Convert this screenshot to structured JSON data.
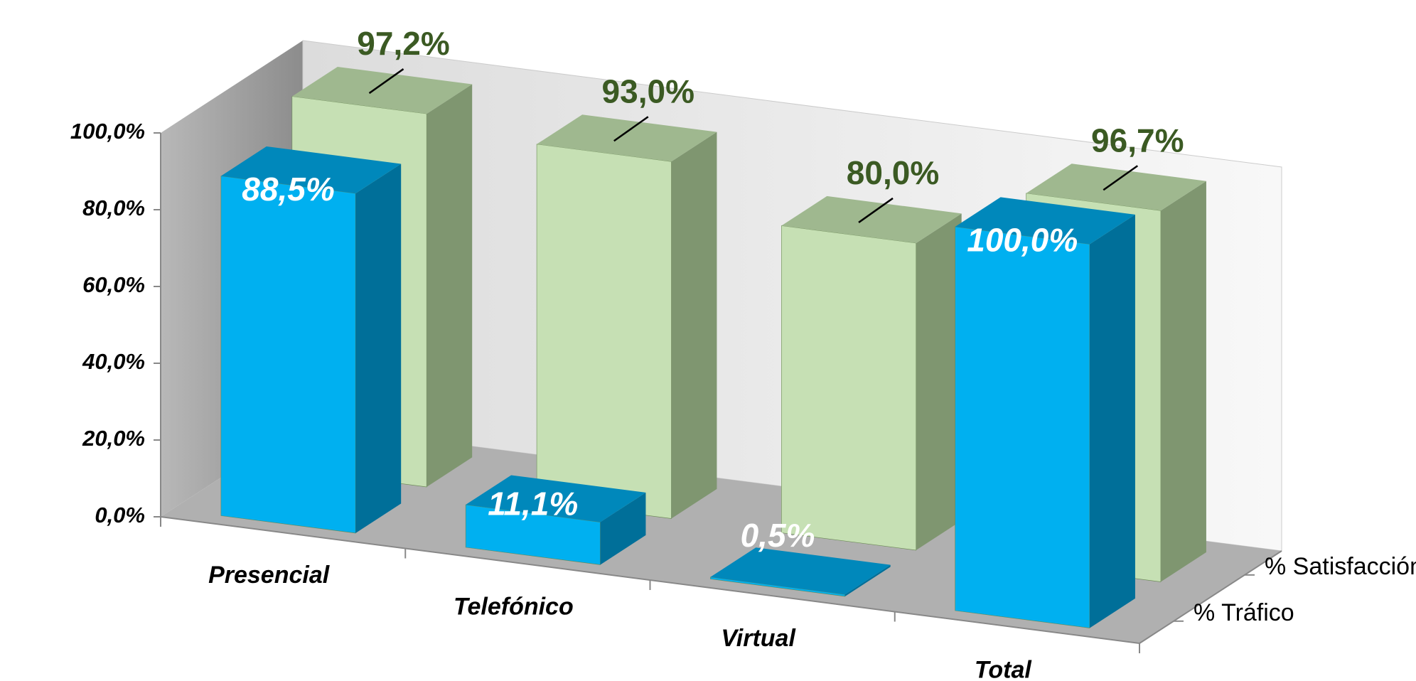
{
  "chart_data": {
    "type": "bar3d",
    "categories": [
      "Presencial",
      "Telefónico",
      "Virtual",
      "Total"
    ],
    "series": [
      {
        "name": "% Tráfico",
        "color": "#00b0f0",
        "values": [
          88.5,
          11.1,
          0.5,
          100.0
        ],
        "value_labels": [
          "88,5%",
          "11,1%",
          "0,5%",
          "100,0%"
        ]
      },
      {
        "name": "% Satisfacción",
        "color": "#c6e0b4",
        "values": [
          97.2,
          93.0,
          80.0,
          96.7
        ],
        "value_labels": [
          "97,2%",
          "93,0%",
          "80,0%",
          "96,7%"
        ]
      }
    ],
    "ylim": [
      0,
      100
    ],
    "yticks": [
      {
        "value": 0,
        "label": "0,0%"
      },
      {
        "value": 20,
        "label": "20,0%"
      },
      {
        "value": 40,
        "label": "40,0%"
      },
      {
        "value": 60,
        "label": "60,0%"
      },
      {
        "value": 80,
        "label": "80,0%"
      },
      {
        "value": 100,
        "label": "100,0%"
      }
    ]
  }
}
